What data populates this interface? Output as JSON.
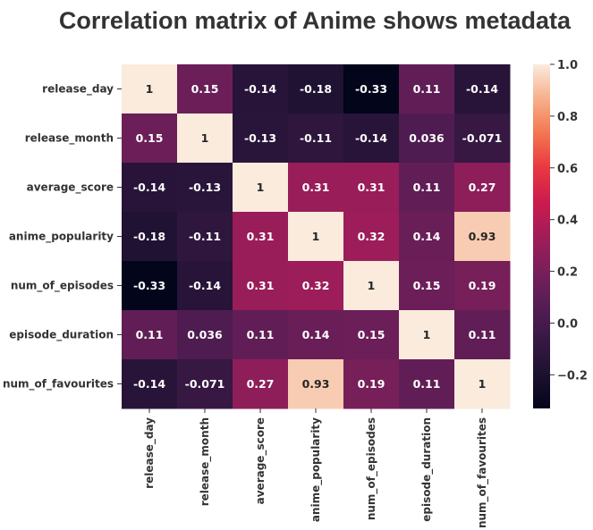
{
  "chart_data": {
    "type": "heatmap",
    "title": "Correlation matrix of Anime shows metadata",
    "rows": [
      "release_day",
      "release_month",
      "average_score",
      "anime_popularity",
      "num_of_episodes",
      "episode_duration",
      "num_of_favourites"
    ],
    "columns": [
      "release_day",
      "release_month",
      "average_score",
      "anime_popularity",
      "num_of_episodes",
      "episode_duration",
      "num_of_favourites"
    ],
    "values": [
      [
        1,
        0.15,
        -0.14,
        -0.18,
        -0.33,
        0.11,
        -0.14
      ],
      [
        0.15,
        1,
        -0.13,
        -0.11,
        -0.14,
        0.036,
        -0.071
      ],
      [
        -0.14,
        -0.13,
        1,
        0.31,
        0.31,
        0.11,
        0.27
      ],
      [
        -0.18,
        -0.11,
        0.31,
        1,
        0.32,
        0.14,
        0.93
      ],
      [
        -0.33,
        -0.14,
        0.31,
        0.32,
        1,
        0.15,
        0.19
      ],
      [
        0.11,
        0.036,
        0.11,
        0.14,
        0.15,
        1,
        0.11
      ],
      [
        -0.14,
        -0.071,
        0.27,
        0.93,
        0.19,
        0.11,
        1
      ]
    ],
    "annotations": [
      [
        "1",
        "0.15",
        "-0.14",
        "-0.18",
        "-0.33",
        "0.11",
        "-0.14"
      ],
      [
        "0.15",
        "1",
        "-0.13",
        "-0.11",
        "-0.14",
        "0.036",
        "-0.071"
      ],
      [
        "-0.14",
        "-0.13",
        "1",
        "0.31",
        "0.31",
        "0.11",
        "0.27"
      ],
      [
        "-0.18",
        "-0.11",
        "0.31",
        "1",
        "0.32",
        "0.14",
        "0.93"
      ],
      [
        "-0.33",
        "-0.14",
        "0.31",
        "0.32",
        "1",
        "0.15",
        "0.19"
      ],
      [
        "0.11",
        "0.036",
        "0.11",
        "0.14",
        "0.15",
        "1",
        "0.11"
      ],
      [
        "-0.14",
        "-0.071",
        "0.27",
        "0.93",
        "0.19",
        "0.11",
        "1"
      ]
    ],
    "colorbar": {
      "colormap": "rocket",
      "range": [
        -0.33,
        1
      ],
      "ticks": [
        -0.2,
        0,
        0.2,
        0.4,
        0.6,
        0.8,
        1.0
      ],
      "tick_labels": [
        "−0.2",
        "0.0",
        "0.2",
        "0.4",
        "0.6",
        "0.8",
        "1.0"
      ]
    },
    "grid": false
  }
}
